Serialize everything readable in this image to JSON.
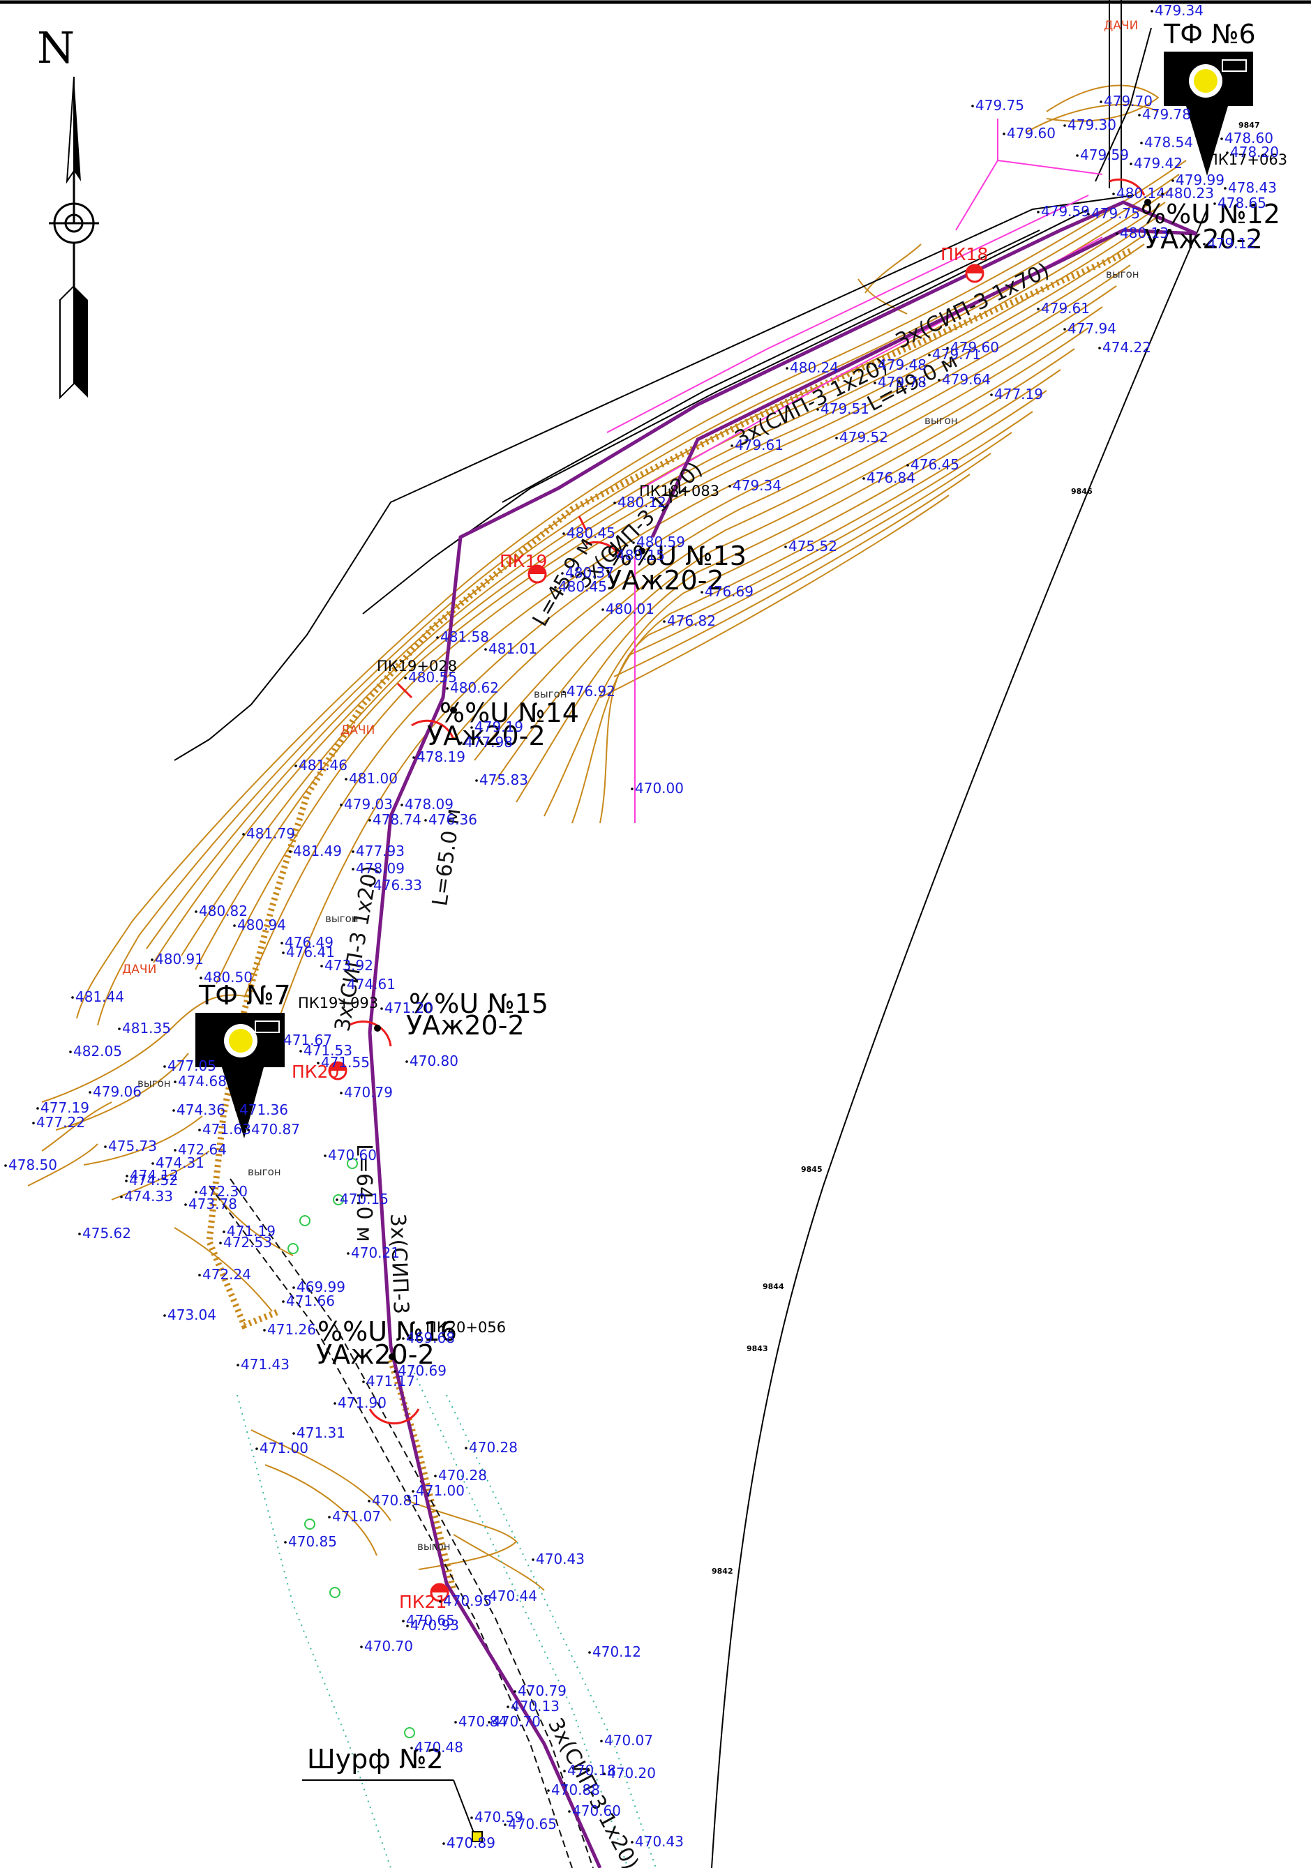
{
  "north_label": "N",
  "photo_points": [
    "ТФ №6",
    "ТФ №7"
  ],
  "pit_label": "Шурф №2",
  "pickets": [
    "ПК18",
    "ПК19",
    "ПК20",
    "ПК21"
  ],
  "pole_pickets": [
    "ПК19+028",
    "ПК19+093",
    "ПК20+056",
    "ПК18+083",
    "ПК17+063"
  ],
  "poles": [
    {
      "number": "%%U №12",
      "type": "УАж20-2"
    },
    {
      "number": "%%U №13",
      "type": "УАж20-2"
    },
    {
      "number": "%%U №14",
      "type": "УАж20-2"
    },
    {
      "number": "%%U №15",
      "type": "УАж20-2"
    },
    {
      "number": "%%U №16",
      "type": "УАж20-2"
    }
  ],
  "cable_labels": [
    "3х(СИП-3 1х70)",
    "3х(СИП-3 1х20)",
    "3х(СИП-3 1х20)",
    "L=65.0 м",
    "3х(СИП-3 1х20)",
    "L=64.0 м",
    "3х(СИП-3",
    "3х(СИП-3 1х20)",
    "L=45.9 м",
    "L=49.0 м"
  ],
  "area_labels": {
    "dacha": "ДАЧИ",
    "pasture": "выгон"
  },
  "survey_labels": [
    "9847",
    "9846",
    "9845",
    "9844",
    "9843",
    "9842"
  ],
  "spot_elevations": [
    "479.34",
    "479.75",
    "479.60",
    "479.70",
    "479.30",
    "479.78",
    "478.60",
    "478.54",
    "479.59",
    "478.20",
    "479.42",
    "479.99",
    "478.43",
    "480.14",
    "480.23",
    "478.65",
    "479.59",
    "479.75",
    "480.13",
    "479.12",
    "479.61",
    "477.94",
    "474.22",
    "480.24",
    "479.71",
    "479.48",
    "479.78",
    "479.64",
    "479.60",
    "477.19",
    "479.51",
    "479.52",
    "479.61",
    "476.84",
    "476.45",
    "479.34",
    "480.12",
    "480.59",
    "480.45",
    "480.15",
    "480.37",
    "480.45",
    "475.52",
    "476.69",
    "480.01",
    "476.82",
    "481.58",
    "481.01",
    "480.55",
    "480.62",
    "476.92",
    "479.19",
    "477.98",
    "478.19",
    "481.46",
    "481.00",
    "475.83",
    "470.00",
    "479.03",
    "478.09",
    "478.74",
    "476.36",
    "481.79",
    "481.49",
    "477.93",
    "478.09",
    "476.33",
    "480.82",
    "480.94",
    "476.49",
    "476.41",
    "480.91",
    "473.92",
    "480.50",
    "481.44",
    "474.61",
    "471.20",
    "481.35",
    "471.67",
    "471.53",
    "470.80",
    "482.05",
    "477.05",
    "474.68",
    "471.55",
    "479.06",
    "470.79",
    "477.19",
    "477.22",
    "474.36",
    "471.36",
    "471.63",
    "470.87",
    "478.50",
    "475.73",
    "472.64",
    "474.31",
    "474.12",
    "470.60",
    "474.52",
    "472.30",
    "474.33",
    "473.78",
    "470.15",
    "475.62",
    "471.19",
    "472.53",
    "470.21",
    "472.24",
    "469.99",
    "471.66",
    "473.04",
    "471.26",
    "469.68",
    "471.43",
    "470.69",
    "471.17",
    "471.90",
    "471.31",
    "470.28",
    "471.00",
    "470.28",
    "471.00",
    "470.81",
    "471.07",
    "470.85",
    "470.43",
    "470.93",
    "470.44",
    "470.95",
    "470.65",
    "470.12",
    "470.70",
    "470.79",
    "470.13",
    "470.84",
    "470.70",
    "470.48",
    "470.07",
    "470.18",
    "470.20",
    "470.88",
    "470.60",
    "470.59",
    "470.65",
    "470.43",
    "470.89"
  ],
  "map_colors": {
    "contour": "#c8891b",
    "power_line": "#7a1a86",
    "elevation_text": "#1a1adc",
    "picket_text": "#ee1c1c",
    "pink_line": "#ff3cdc",
    "dashed_road": "#111111",
    "green_markers": "#2fc84b",
    "teal_dots": "#3ab6a0"
  }
}
